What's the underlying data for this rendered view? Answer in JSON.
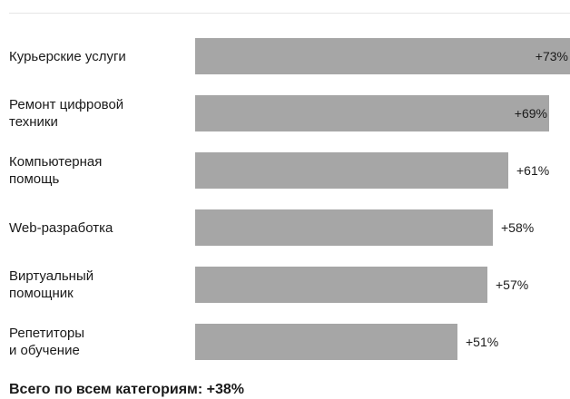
{
  "colors": {
    "bar": "#a6a6a6",
    "text": "#1a1a1a",
    "rule": "#e6e6e6"
  },
  "chart_data": {
    "type": "bar",
    "orientation": "horizontal",
    "categories": [
      "Курьерские услуги",
      "Ремонт цифровой\nтехники",
      "Компьютерная\nпомощь",
      "Web-разработка",
      "Виртуальный\nпомощник",
      "Репетиторы\nи обучение"
    ],
    "values": [
      73,
      69,
      61,
      58,
      57,
      51
    ],
    "value_labels": [
      "+73%",
      "+69%",
      "+61%",
      "+58%",
      "+57%",
      "+51%"
    ],
    "unit": "%",
    "xlim": [
      0,
      73
    ],
    "grid": false,
    "legend": "none"
  },
  "footer": {
    "total": "Всего по всем категориям: +38%"
  }
}
